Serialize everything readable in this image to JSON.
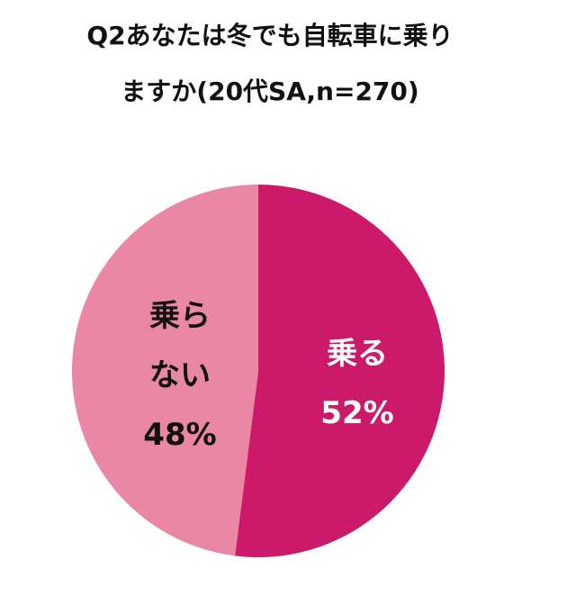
{
  "chart_data": {
    "type": "pie",
    "title": [
      "Q2あなたは冬でも自転車に乗り",
      "ますか(20代SA,n=270)"
    ],
    "categories": [
      "乗る",
      "乗らない"
    ],
    "values": [
      52,
      48
    ],
    "value_labels": [
      "52%",
      "48%"
    ],
    "colors": [
      "#cc1a6a",
      "#ea87a4"
    ]
  }
}
